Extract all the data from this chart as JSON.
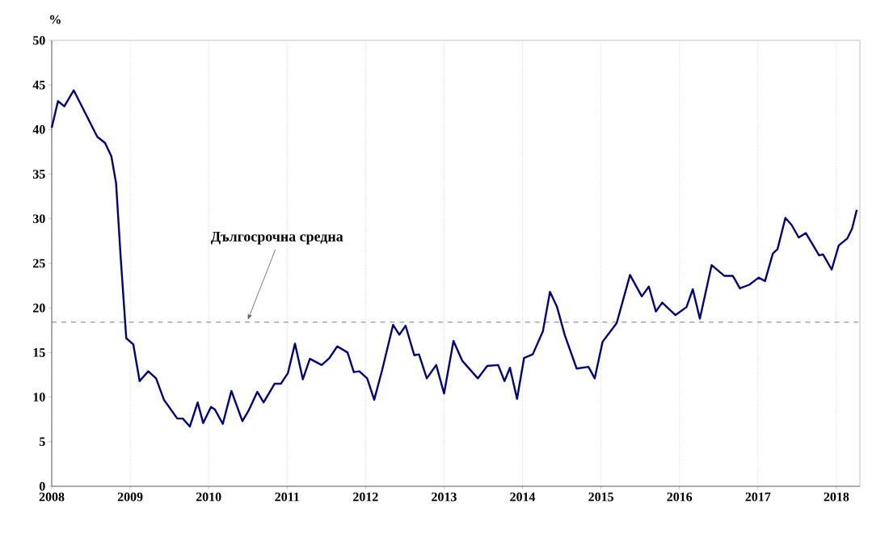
{
  "chart_data": {
    "type": "line",
    "ylabel": "%",
    "x": [
      2008.0,
      2008.08,
      2008.16,
      2008.28,
      2008.58,
      2008.68,
      2008.76,
      2008.82,
      2008.88,
      2008.95,
      2009.04,
      2009.12,
      2009.23,
      2009.33,
      2009.43,
      2009.6,
      2009.67,
      2009.76,
      2009.86,
      2009.93,
      2010.03,
      2010.08,
      2010.18,
      2010.29,
      2010.43,
      2010.51,
      2010.62,
      2010.7,
      2010.84,
      2010.92,
      2011.01,
      2011.1,
      2011.2,
      2011.29,
      2011.44,
      2011.54,
      2011.64,
      2011.77,
      2011.85,
      2011.92,
      2012.02,
      2012.11,
      2012.21,
      2012.35,
      2012.43,
      2012.51,
      2012.62,
      2012.68,
      2012.78,
      2012.9,
      2013.0,
      2013.12,
      2013.23,
      2013.43,
      2013.55,
      2013.69,
      2013.77,
      2013.84,
      2013.93,
      2014.02,
      2014.13,
      2014.26,
      2014.35,
      2014.44,
      2014.54,
      2014.69,
      2014.84,
      2014.92,
      2015.02,
      2015.2,
      2015.37,
      2015.52,
      2015.61,
      2015.7,
      2015.78,
      2015.95,
      2016.09,
      2016.17,
      2016.26,
      2016.41,
      2016.57,
      2016.68,
      2016.77,
      2016.89,
      2017.01,
      2017.09,
      2017.19,
      2017.25,
      2017.35,
      2017.43,
      2017.52,
      2017.61,
      2017.78,
      2017.83,
      2017.94,
      2018.03,
      2018.14,
      2018.2,
      2018.26
    ],
    "series": [
      {
        "color": "#000080",
        "values": [
          40.2,
          43.2,
          42.6,
          44.4,
          39.2,
          38.5,
          37.0,
          34.0,
          25.5,
          16.6,
          15.9,
          11.8,
          12.9,
          12.1,
          9.7,
          7.6,
          7.6,
          6.7,
          9.4,
          7.1,
          8.9,
          8.6,
          7.0,
          10.7,
          7.3,
          8.5,
          10.6,
          9.4,
          11.5,
          11.5,
          12.7,
          16.0,
          12.0,
          14.3,
          13.6,
          14.4,
          15.7,
          15.0,
          12.8,
          12.9,
          12.1,
          9.7,
          13.0,
          18.1,
          17.0,
          18.0,
          14.7,
          14.8,
          12.1,
          13.6,
          10.4,
          16.3,
          14.1,
          12.1,
          13.5,
          13.6,
          11.8,
          13.3,
          9.8,
          14.4,
          14.8,
          17.4,
          21.8,
          20.1,
          16.9,
          13.2,
          13.4,
          12.1,
          16.2,
          18.3,
          23.7,
          21.3,
          22.4,
          19.6,
          20.6,
          19.2,
          20.1,
          22.1,
          18.8,
          24.8,
          23.6,
          23.6,
          22.2,
          22.6,
          23.4,
          23.0,
          26.1,
          26.6,
          30.1,
          29.3,
          27.9,
          28.4,
          25.9,
          26.0,
          24.3,
          27.0,
          27.8,
          28.9,
          31.0
        ]
      }
    ],
    "xlim": [
      2008,
      2018.3
    ],
    "xticks": [
      2008,
      2009,
      2010,
      2011,
      2012,
      2013,
      2014,
      2015,
      2016,
      2017,
      2018
    ],
    "ylim": [
      0,
      50
    ],
    "yticks": [
      0,
      5,
      10,
      15,
      20,
      25,
      30,
      35,
      40,
      45,
      50
    ],
    "grid": "x",
    "ref_lines": [
      {
        "axis": "y",
        "value": 18.4,
        "color": "#555555",
        "line_style": "dashed"
      }
    ],
    "annotations": [
      {
        "text": "Дългосрочна средна",
        "x": 2010.5,
        "y": 18.4
      }
    ]
  }
}
